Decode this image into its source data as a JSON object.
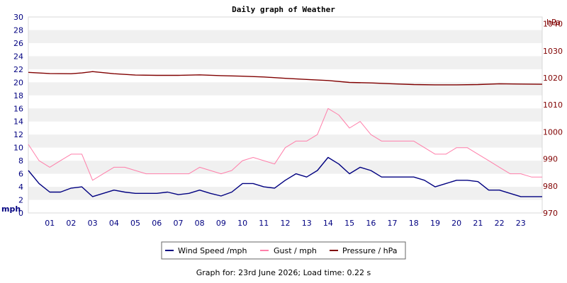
{
  "chart_data": {
    "type": "line",
    "title": "Daily graph of Weather",
    "x_ticks": [
      "01",
      "02",
      "03",
      "04",
      "05",
      "06",
      "07",
      "08",
      "09",
      "10",
      "11",
      "12",
      "13",
      "14",
      "15",
      "16",
      "17",
      "18",
      "19",
      "20",
      "21",
      "22",
      "23"
    ],
    "x_range": [
      0,
      24
    ],
    "y_left": {
      "unit": "mph",
      "ticks": [
        "0",
        "2",
        "4",
        "6",
        "8",
        "10",
        "12",
        "14",
        "16",
        "18",
        "20",
        "22",
        "24",
        "26",
        "28",
        "30"
      ],
      "range": [
        0,
        30
      ]
    },
    "y_right": {
      "unit": "hPa",
      "ticks": [
        "970",
        "980",
        "990",
        "1000",
        "1010",
        "1020",
        "1030",
        "1040"
      ],
      "range": [
        970,
        1042.5
      ]
    },
    "grid": "horizontal bands",
    "legend_position": "bottom",
    "series": [
      {
        "name": "Wind Speed /mph",
        "color": "#000080",
        "axis": "left",
        "x": [
          0,
          0.5,
          1,
          1.5,
          2,
          2.5,
          3,
          3.5,
          4,
          4.5,
          5,
          5.5,
          6,
          6.5,
          7,
          7.5,
          8,
          8.5,
          9,
          9.5,
          10,
          10.5,
          11,
          11.5,
          12,
          12.5,
          13,
          13.5,
          14,
          14.5,
          15,
          15.5,
          16,
          16.5,
          17,
          17.5,
          18,
          18.5,
          19,
          19.5,
          20,
          20.5,
          21,
          21.5,
          22,
          22.5,
          23,
          23.5,
          24
        ],
        "values": [
          6.5,
          4.5,
          3.2,
          3.2,
          3.8,
          4.0,
          2.5,
          3.0,
          3.5,
          3.2,
          3.0,
          3.0,
          3.0,
          3.2,
          2.8,
          3.0,
          3.5,
          3.0,
          2.6,
          3.2,
          4.5,
          4.5,
          4.0,
          3.8,
          5.0,
          6.0,
          5.5,
          6.5,
          8.5,
          7.5,
          6.0,
          7.0,
          6.5,
          5.5,
          5.5,
          5.5,
          5.5,
          5.0,
          4.0,
          4.5,
          5.0,
          5.0,
          4.8,
          3.5,
          3.5,
          3.0,
          2.5,
          2.5,
          2.5
        ]
      },
      {
        "name": "Gust / mph",
        "color": "#ff7faa",
        "axis": "left",
        "x": [
          0,
          0.5,
          1,
          1.5,
          2,
          2.5,
          3,
          3.5,
          4,
          4.5,
          5,
          5.5,
          6,
          6.5,
          7,
          7.5,
          8,
          8.5,
          9,
          9.5,
          10,
          10.5,
          11,
          11.5,
          12,
          12.5,
          13,
          13.5,
          14,
          14.5,
          15,
          15.5,
          16,
          16.5,
          17,
          17.5,
          18,
          18.5,
          19,
          19.5,
          20,
          20.5,
          21,
          21.5,
          22,
          22.5,
          23,
          23.5,
          24
        ],
        "values": [
          10.5,
          8,
          7,
          8,
          9,
          9,
          5,
          6,
          7,
          7,
          6.5,
          6,
          6,
          6,
          6,
          6,
          7,
          6.5,
          6,
          6.5,
          8,
          8.5,
          8,
          7.5,
          10,
          11,
          11,
          12,
          16,
          15,
          13,
          14,
          12,
          11,
          11,
          11,
          11,
          10,
          9,
          9,
          10,
          10,
          9,
          8,
          7,
          6,
          6,
          5.5,
          5.5
        ]
      },
      {
        "name": "Pressure / hPa",
        "color": "#800000",
        "axis": "right",
        "x": [
          0,
          1,
          2,
          2.5,
          3,
          3.5,
          4,
          5,
          6,
          7,
          8,
          9,
          10,
          11,
          12,
          13,
          14,
          15,
          16,
          17,
          18,
          19,
          20,
          21,
          22,
          23,
          24
        ],
        "values": [
          1022,
          1021.6,
          1021.5,
          1021.8,
          1022.3,
          1021.9,
          1021.5,
          1021,
          1020.9,
          1020.9,
          1021.1,
          1020.8,
          1020.6,
          1020.3,
          1019.8,
          1019.4,
          1019,
          1018.3,
          1018.1,
          1017.8,
          1017.5,
          1017.4,
          1017.4,
          1017.5,
          1017.8,
          1017.7,
          1017.6
        ]
      }
    ],
    "footer_text": "Graph for: 23rd June 2026; Load time: 0.22 s"
  }
}
